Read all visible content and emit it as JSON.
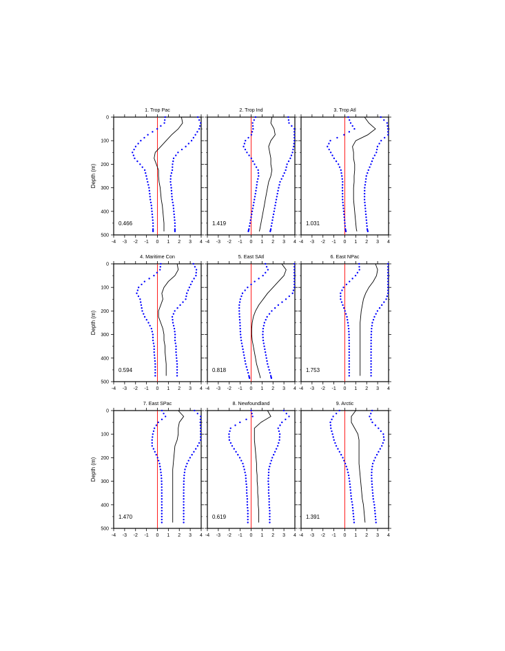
{
  "chart_data": {
    "type": "line",
    "ylabel": "Depth (m)",
    "xlim": [
      -4,
      4
    ],
    "ylim": [
      500,
      0
    ],
    "x_ticks": [
      "-4",
      "-3",
      "-2",
      "-1",
      "0",
      "1",
      "2",
      "3",
      "4"
    ],
    "y_ticks": [
      "0",
      "100",
      "200",
      "300",
      "400",
      "500"
    ],
    "zero_line_color": "#ff0000",
    "mean_line_color": "#000000",
    "spread_dot_color": "#0000ff",
    "panels": [
      {
        "title": "1. Trop Pac",
        "value": "0.466",
        "depth": [
          0,
          25,
          50,
          75,
          100,
          125,
          150,
          175,
          200,
          225,
          250,
          275,
          300,
          325,
          350,
          375,
          400,
          425,
          450,
          475,
          485
        ],
        "mean": [
          2.2,
          2.3,
          1.9,
          1.3,
          0.8,
          0.3,
          -0.2,
          -0.3,
          -0.1,
          0.1,
          0.1,
          0.15,
          0.25,
          0.3,
          0.35,
          0.45,
          0.5,
          0.55,
          0.6,
          0.6,
          0.6
        ]
      },
      {
        "title": "2. Trop Ind",
        "value": "1.419",
        "depth": [
          0,
          25,
          50,
          75,
          100,
          125,
          150,
          175,
          200,
          225,
          250,
          275,
          300,
          325,
          350,
          375,
          400,
          425,
          450,
          475,
          485
        ],
        "mean": [
          1.9,
          1.8,
          2.1,
          2.2,
          1.8,
          1.6,
          1.7,
          1.8,
          1.8,
          1.9,
          1.8,
          1.6,
          1.5,
          1.4,
          1.3,
          1.2,
          1.1,
          1.0,
          0.9,
          0.8,
          0.75
        ]
      },
      {
        "title": "3. Trop Atl",
        "value": "1.031",
        "depth": [
          0,
          25,
          50,
          75,
          100,
          125,
          150,
          175,
          200,
          225,
          250,
          275,
          300,
          325,
          350,
          375,
          400,
          425,
          450,
          475,
          485
        ],
        "mean": [
          1.8,
          2.2,
          2.8,
          2.1,
          1.0,
          0.7,
          0.8,
          0.8,
          0.9,
          0.9,
          0.85,
          0.85,
          0.8,
          0.8,
          0.8,
          0.85,
          0.9,
          0.95,
          1.0,
          1.05,
          1.1
        ]
      },
      {
        "title": "4. Maritime Con",
        "value": "0.594",
        "depth": [
          0,
          25,
          50,
          75,
          100,
          125,
          150,
          175,
          200,
          225,
          250,
          275,
          300,
          325,
          350,
          375,
          400,
          425,
          450,
          475
        ],
        "mean": [
          1.8,
          1.9,
          1.6,
          1.0,
          0.6,
          0.4,
          0.5,
          0.3,
          0.1,
          0.1,
          0.3,
          0.5,
          0.6,
          0.6,
          0.7,
          0.7,
          0.75,
          0.8,
          0.8,
          0.8
        ]
      },
      {
        "title": "5. East SAtl",
        "value": "0.818",
        "depth": [
          0,
          25,
          50,
          75,
          100,
          125,
          150,
          175,
          200,
          225,
          250,
          275,
          300,
          325,
          350,
          375,
          400,
          425,
          450,
          475,
          485
        ],
        "mean": [
          2.8,
          3.2,
          3.0,
          2.5,
          2.0,
          1.5,
          1.1,
          0.7,
          0.4,
          0.2,
          0.1,
          0.05,
          0.05,
          0.1,
          0.2,
          0.3,
          0.4,
          0.5,
          0.65,
          0.8,
          0.85
        ]
      },
      {
        "title": "6. East NPac",
        "value": "1.753",
        "depth": [
          0,
          25,
          50,
          75,
          100,
          125,
          150,
          175,
          200,
          225,
          250,
          275,
          300,
          325,
          350,
          375,
          400,
          425,
          450,
          475
        ],
        "mean": [
          2.8,
          3.0,
          2.9,
          2.6,
          2.2,
          1.9,
          1.7,
          1.6,
          1.5,
          1.45,
          1.4,
          1.4,
          1.4,
          1.4,
          1.4,
          1.4,
          1.4,
          1.4,
          1.4,
          1.4
        ]
      },
      {
        "title": "7. East SPac",
        "value": "1.470",
        "depth": [
          0,
          25,
          50,
          75,
          100,
          125,
          150,
          175,
          200,
          225,
          250,
          275,
          300,
          325,
          350,
          375,
          400,
          425,
          450,
          475
        ],
        "mean": [
          1.9,
          2.4,
          2.0,
          1.9,
          1.9,
          1.8,
          1.6,
          1.55,
          1.5,
          1.45,
          1.4,
          1.4,
          1.4,
          1.4,
          1.4,
          1.4,
          1.4,
          1.4,
          1.4,
          1.4
        ]
      },
      {
        "title": "8. Newfoundland",
        "value": "0.619",
        "depth": [
          0,
          25,
          50,
          75,
          100,
          125,
          150,
          175,
          200,
          225,
          250,
          275,
          300,
          325,
          350,
          375,
          400,
          425,
          450,
          475
        ],
        "mean": [
          1.5,
          1.8,
          0.9,
          0.3,
          0.3,
          0.3,
          0.35,
          0.4,
          0.45,
          0.5,
          0.5,
          0.55,
          0.55,
          0.6,
          0.6,
          0.65,
          0.65,
          0.7,
          0.7,
          0.7
        ]
      },
      {
        "title": "9. Arctic",
        "value": "1.391",
        "depth": [
          0,
          25,
          50,
          75,
          100,
          125,
          150,
          175,
          200,
          225,
          250,
          275,
          300,
          325,
          350,
          375,
          400,
          425,
          450,
          475
        ],
        "mean": [
          1.0,
          0.6,
          0.6,
          0.9,
          1.2,
          1.3,
          1.3,
          1.3,
          1.3,
          1.3,
          1.35,
          1.4,
          1.45,
          1.5,
          1.55,
          1.6,
          1.7,
          1.75,
          1.8,
          1.85
        ]
      }
    ]
  }
}
